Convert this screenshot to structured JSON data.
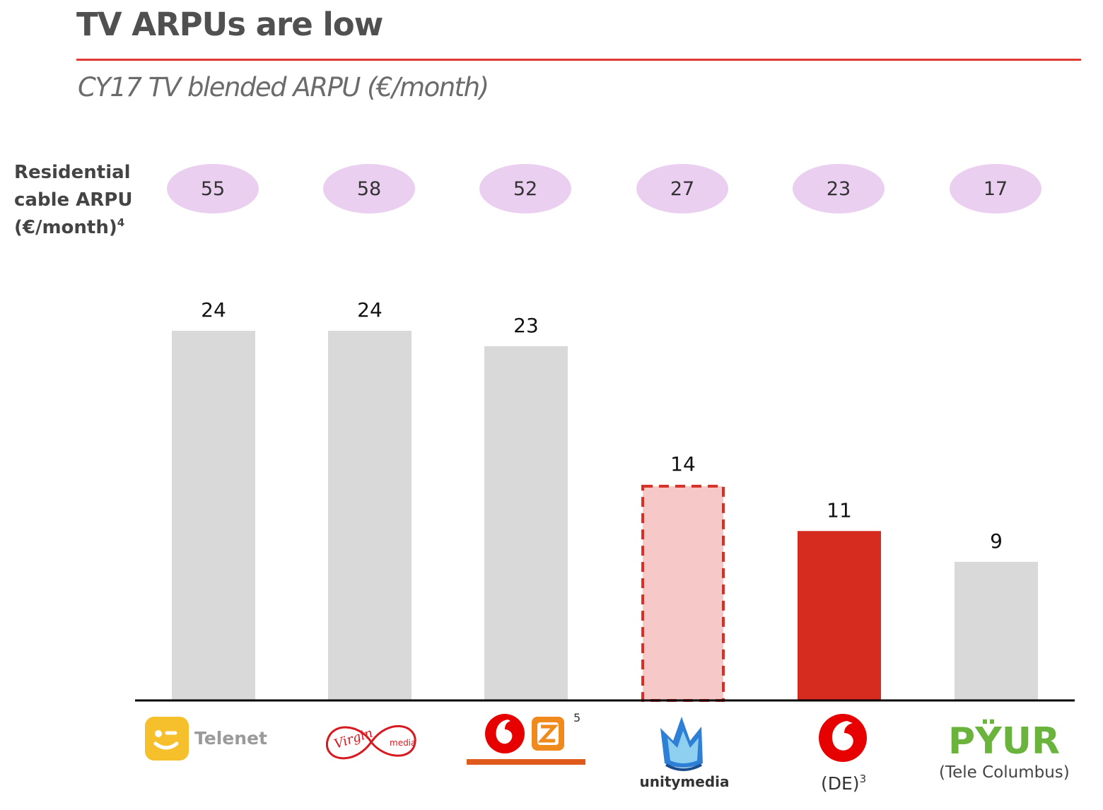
{
  "title": "TV ARPUs are low",
  "subtitle": "CY17 TV blended ARPU (€/month)",
  "residential_label": {
    "line1": "Residential",
    "line2": "cable ARPU",
    "line3": "(€/month)",
    "sup": "4"
  },
  "residential_values": [
    "55",
    "58",
    "52",
    "27",
    "23",
    "17"
  ],
  "chart_data": {
    "type": "bar",
    "title": "CY17 TV blended ARPU (€/month)",
    "categories": [
      "Telenet",
      "Virgin media",
      "Vodafone Ziggo",
      "unitymedia",
      "Vodafone (DE)",
      "PYUR (Tele Columbus)"
    ],
    "values": [
      24,
      24,
      23,
      14,
      11,
      9
    ],
    "ylim": [
      0,
      24
    ],
    "grid": false,
    "colors": {
      "default": "#d9d9d9",
      "dashed_fill": "#f6c8c8",
      "dashed_stroke": "#d93026",
      "highlight": "#d62b1f",
      "axis": "#000000"
    }
  },
  "logos": {
    "telenet_text": "Telenet",
    "virgin_text": "Virgin",
    "virgin_media_text": "media",
    "ziggo_sup": "5",
    "unitymedia_text": "unitymedia",
    "vodafone_de_label": "(DE)",
    "vodafone_de_sup": "3",
    "pyur_text": "PŸUR",
    "pyur_sub": "(Tele Columbus)"
  }
}
